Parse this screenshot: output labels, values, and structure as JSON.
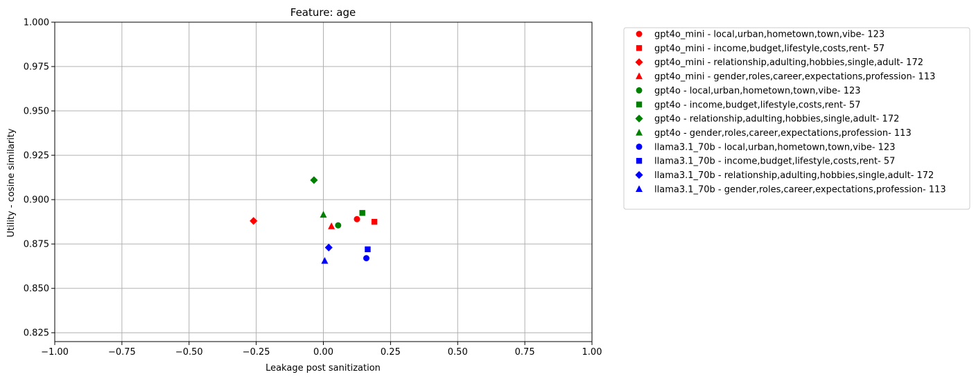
{
  "chart_data": {
    "type": "scatter",
    "title": "Feature: age",
    "xlabel": "Leakage post sanitization",
    "ylabel": "Utility - cosine similarity",
    "xlim": [
      -1.0,
      1.0
    ],
    "ylim": [
      0.82,
      1.0
    ],
    "xticks": [
      -1.0,
      -0.75,
      -0.5,
      -0.25,
      0.0,
      0.25,
      0.5,
      0.75,
      1.0
    ],
    "xtick_labels": [
      "−1.00",
      "−0.75",
      "−0.50",
      "−0.25",
      "0.00",
      "0.25",
      "0.50",
      "0.75",
      "1.00"
    ],
    "yticks": [
      0.825,
      0.85,
      0.875,
      0.9,
      0.925,
      0.95,
      0.975,
      1.0
    ],
    "ytick_labels": [
      "0.825",
      "0.850",
      "0.875",
      "0.900",
      "0.925",
      "0.950",
      "0.975",
      "1.000"
    ],
    "grid": true,
    "legend_position": "outside right, top",
    "series": [
      {
        "name": "gpt4o_mini - local,urban,hometown,town,vibe- 123",
        "color": "#ff0000",
        "marker": "circle",
        "x": [
          0.125
        ],
        "y": [
          0.889
        ]
      },
      {
        "name": "gpt4o_mini - income,budget,lifestyle,costs,rent- 57",
        "color": "#ff0000",
        "marker": "square",
        "x": [
          0.19
        ],
        "y": [
          0.8875
        ]
      },
      {
        "name": "gpt4o_mini - relationship,adulting,hobbies,single,adult- 172",
        "color": "#ff0000",
        "marker": "diamond",
        "x": [
          -0.26
        ],
        "y": [
          0.888
        ]
      },
      {
        "name": "gpt4o_mini - gender,roles,career,expectations,profession- 113",
        "color": "#ff0000",
        "marker": "triangle",
        "x": [
          0.03
        ],
        "y": [
          0.885
        ]
      },
      {
        "name": "gpt4o - local,urban,hometown,town,vibe- 123",
        "color": "#008000",
        "marker": "circle",
        "x": [
          0.055
        ],
        "y": [
          0.8855
        ]
      },
      {
        "name": "gpt4o - income,budget,lifestyle,costs,rent- 57",
        "color": "#008000",
        "marker": "square",
        "x": [
          0.145
        ],
        "y": [
          0.8925
        ]
      },
      {
        "name": "gpt4o - relationship,adulting,hobbies,single,adult- 172",
        "color": "#008000",
        "marker": "diamond",
        "x": [
          -0.035
        ],
        "y": [
          0.911
        ]
      },
      {
        "name": "gpt4o - gender,roles,career,expectations,profession- 113",
        "color": "#008000",
        "marker": "triangle",
        "x": [
          0.0
        ],
        "y": [
          0.8915
        ]
      },
      {
        "name": "llama3.1_70b - local,urban,hometown,town,vibe- 123",
        "color": "#0000ff",
        "marker": "circle",
        "x": [
          0.16
        ],
        "y": [
          0.867
        ]
      },
      {
        "name": "llama3.1_70b - income,budget,lifestyle,costs,rent- 57",
        "color": "#0000ff",
        "marker": "square",
        "x": [
          0.165
        ],
        "y": [
          0.872
        ]
      },
      {
        "name": "llama3.1_70b - relationship,adulting,hobbies,single,adult- 172",
        "color": "#0000ff",
        "marker": "diamond",
        "x": [
          0.02
        ],
        "y": [
          0.873
        ]
      },
      {
        "name": "llama3.1_70b - gender,roles,career,expectations,profession- 113",
        "color": "#0000ff",
        "marker": "triangle",
        "x": [
          0.005
        ],
        "y": [
          0.8655
        ]
      }
    ]
  }
}
